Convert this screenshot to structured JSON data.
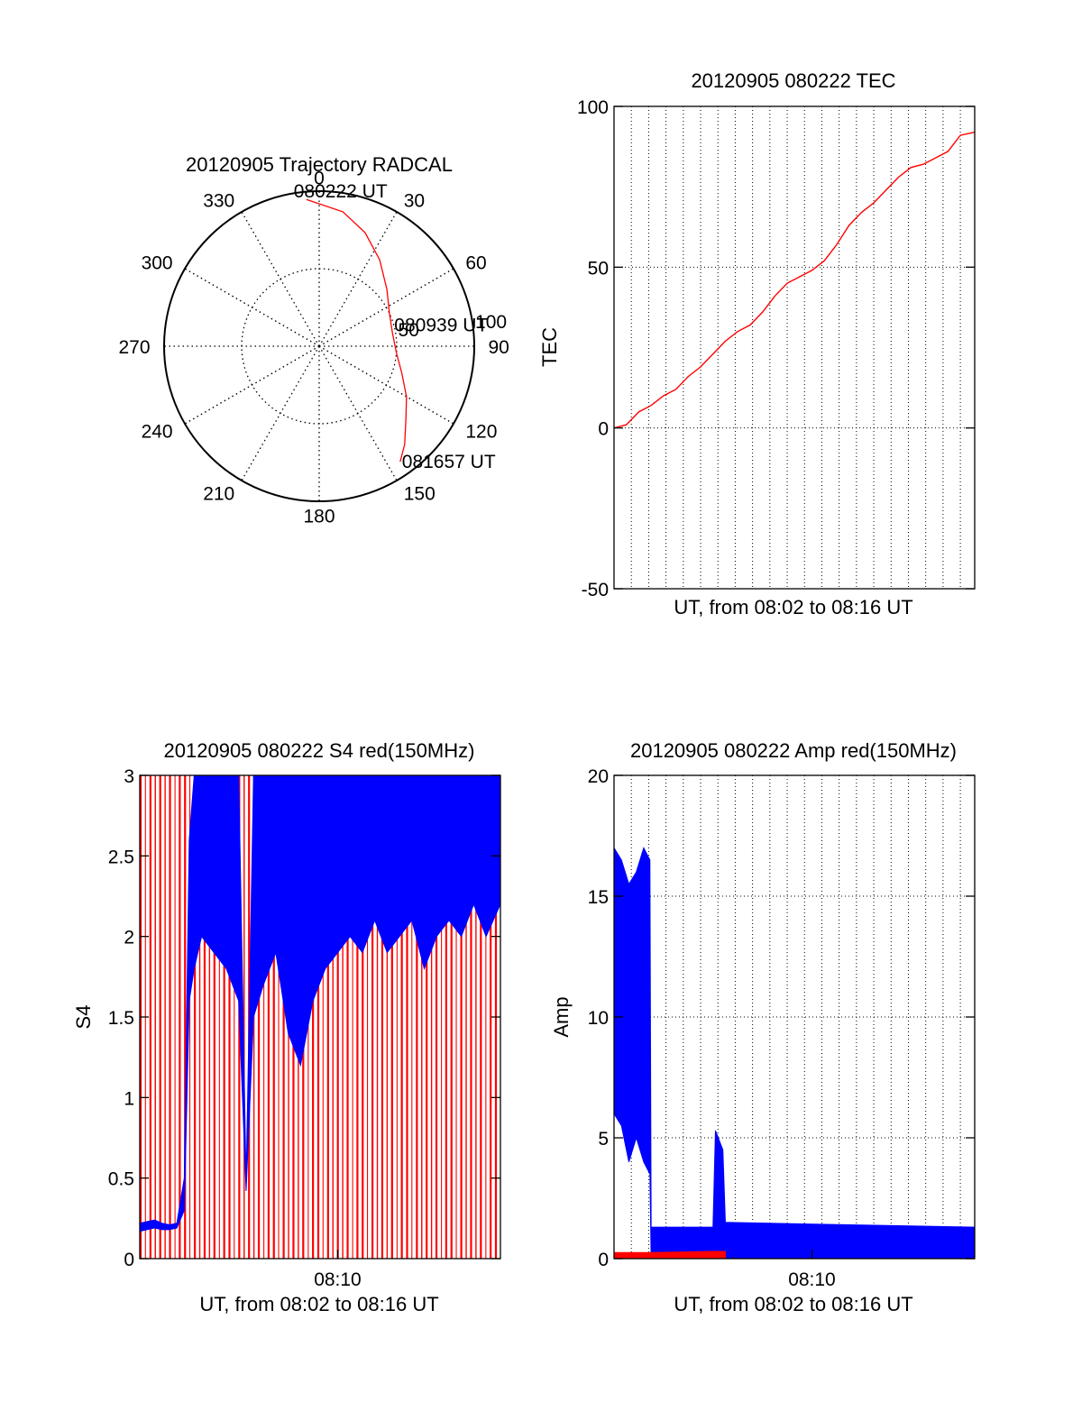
{
  "colors": {
    "red": "#ff0000",
    "blue": "#0000ff",
    "axis": "#000000",
    "grid": "#000000"
  },
  "chart_data": [
    {
      "type": "polar",
      "title": "20120905 Trajectory RADCAL",
      "angle_labels": [
        "0",
        "30",
        "60",
        "90",
        "120",
        "150",
        "180",
        "210",
        "240",
        "270",
        "300",
        "330"
      ],
      "radial_labels": [
        "50",
        "100"
      ],
      "rmax": 100,
      "series": [
        {
          "color": "red",
          "points": [
            [
              355,
              95
            ],
            [
              10,
              88
            ],
            [
              22,
              79
            ],
            [
              35,
              68
            ],
            [
              50,
              57
            ],
            [
              65,
              50
            ],
            [
              80,
              48
            ],
            [
              95,
              50
            ],
            [
              108,
              56
            ],
            [
              120,
              65
            ],
            [
              130,
              73
            ],
            [
              139,
              84
            ],
            [
              145,
              91
            ]
          ]
        }
      ],
      "annotations": [
        {
          "text": "080222 UT",
          "az": 355,
          "r": 95
        },
        {
          "text": "080939 UT",
          "az": 80,
          "r": 48
        },
        {
          "text": "081657 UT",
          "az": 145,
          "r": 91
        }
      ]
    },
    {
      "type": "line",
      "title": "20120905 080222 TEC",
      "xlabel": "UT, from 08:02 to 08:16 UT",
      "ylabel": "TEC",
      "ylim": [
        -50,
        100
      ],
      "yticks": [
        "100",
        "50",
        "0",
        "-50"
      ],
      "x_range": [
        0,
        14.58
      ],
      "grid_x": [
        0.7,
        1.4,
        2.1,
        2.8,
        3.5,
        4.2,
        4.9,
        5.6,
        6.3,
        7.0,
        7.7,
        8.4,
        9.1,
        9.8,
        10.5,
        11.2,
        11.9,
        12.6,
        13.3,
        14.0
      ],
      "grid_y": [
        0,
        50
      ],
      "series": [
        {
          "color": "red",
          "x": [
            0.0,
            0.5,
            1.0,
            1.5,
            2.0,
            2.5,
            3.0,
            3.5,
            4.0,
            4.5,
            5.0,
            5.5,
            6.0,
            6.5,
            7.0,
            7.5,
            8.0,
            8.5,
            9.0,
            9.5,
            10.0,
            10.5,
            11.0,
            11.5,
            12.0,
            12.5,
            13.0,
            13.5,
            14.0,
            14.58
          ],
          "y": [
            0,
            1,
            5,
            7,
            10,
            12,
            16,
            19,
            23,
            27,
            30,
            32,
            36,
            41,
            45,
            47,
            49,
            52,
            57,
            63,
            67,
            70,
            74,
            78,
            81,
            82,
            84,
            86,
            91,
            92
          ]
        }
      ]
    },
    {
      "type": "line",
      "title": "20120905 080222 S4 red(150MHz)",
      "xlabel": "UT, from 08:02 to 08:16 UT",
      "ylabel": "S4",
      "ylim": [
        0,
        3
      ],
      "yticks": [
        "0",
        "0.5",
        "1",
        "1.5",
        "2",
        "2.5",
        "3"
      ],
      "xtick_label": "08:10",
      "xtick_pos": 8.0,
      "x_range": [
        0,
        14.58
      ],
      "series": [
        {
          "color": "red",
          "style": "dense_spikes",
          "min": 0.0,
          "max": 3.0
        },
        {
          "color": "blue",
          "style": "band",
          "x": [
            0.0,
            0.3,
            0.6,
            0.9,
            1.2,
            1.5,
            1.8,
            2.0,
            2.2,
            2.5,
            3.0,
            3.5,
            4.0,
            4.3,
            4.6,
            5.0,
            5.5,
            6.0,
            6.5,
            7.0,
            7.5,
            8.0,
            8.5,
            9.0,
            9.5,
            10.0,
            10.5,
            11.0,
            11.5,
            12.0,
            12.5,
            13.0,
            13.5,
            14.0,
            14.58
          ],
          "low": [
            0.17,
            0.18,
            0.19,
            0.18,
            0.18,
            0.19,
            0.3,
            1.6,
            1.8,
            2.0,
            1.9,
            1.8,
            1.6,
            0.42,
            1.5,
            1.7,
            1.9,
            1.4,
            1.2,
            1.6,
            1.8,
            1.9,
            2.0,
            1.9,
            2.1,
            1.9,
            2.0,
            2.1,
            1.8,
            2.0,
            2.1,
            2.0,
            2.2,
            2.0,
            2.2
          ],
          "high": [
            0.22,
            0.23,
            0.24,
            0.22,
            0.21,
            0.22,
            0.5,
            2.6,
            3.0,
            3.0,
            3.0,
            3.0,
            3.0,
            0.48,
            3.0,
            3.0,
            3.0,
            3.0,
            3.0,
            3.0,
            3.0,
            3.0,
            3.0,
            3.0,
            3.0,
            3.0,
            3.0,
            3.0,
            3.0,
            3.0,
            3.0,
            3.0,
            3.0,
            3.0,
            3.0
          ]
        }
      ]
    },
    {
      "type": "line",
      "title": "20120905 080222 Amp red(150MHz)",
      "xlabel": "UT, from 08:02 to 08:16 UT",
      "ylabel": "Amp",
      "ylim": [
        0,
        20
      ],
      "yticks": [
        "0",
        "5",
        "10",
        "15",
        "20"
      ],
      "xtick_label": "08:10",
      "xtick_pos": 8.0,
      "x_range": [
        0,
        14.58
      ],
      "grid_x": [
        0.7,
        1.4,
        2.1,
        2.8,
        3.5,
        4.2,
        4.9,
        5.6,
        6.3,
        7.0,
        7.7,
        8.4,
        9.1,
        9.8,
        10.5,
        11.2,
        11.9,
        12.6,
        13.3,
        14.0
      ],
      "grid_y": [
        5,
        10,
        15
      ],
      "series": [
        {
          "color": "blue",
          "style": "band",
          "x": [
            0.0,
            0.3,
            0.6,
            0.9,
            1.2,
            1.45,
            1.5,
            4.0,
            4.1,
            4.4,
            4.5,
            14.58
          ],
          "low": [
            6.0,
            5.5,
            4.0,
            5.0,
            4.0,
            3.5,
            0.0,
            0.0,
            0.0,
            0.0,
            0.0,
            0.0
          ],
          "high": [
            17.0,
            16.5,
            15.5,
            16.0,
            17.0,
            16.5,
            1.3,
            1.3,
            5.3,
            4.5,
            1.5,
            1.3
          ]
        },
        {
          "color": "red",
          "style": "band",
          "x": [
            0.0,
            1.45,
            4.0,
            4.5
          ],
          "low": [
            0.0,
            0.0,
            0.0,
            0.0
          ],
          "high": [
            0.25,
            0.25,
            0.3,
            0.3
          ]
        }
      ]
    }
  ]
}
